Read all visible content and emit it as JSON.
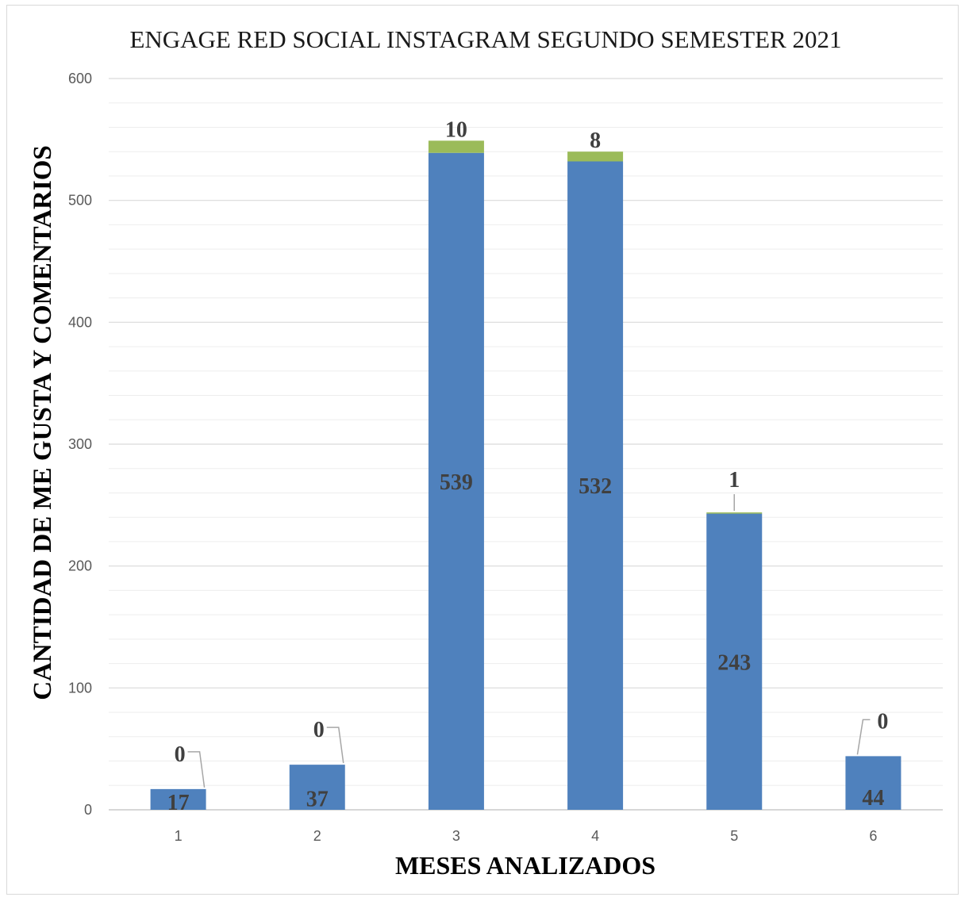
{
  "chart_data": {
    "type": "bar",
    "stacked": true,
    "title": "ENGAGE RED SOCIAL INSTAGRAM SEGUNDO SEMESTER 2021",
    "xlabel": "MESES ANALIZADOS",
    "ylabel": "CANTIDAD DE ME GUSTA Y COMENTARIOS",
    "categories": [
      "1",
      "2",
      "3",
      "4",
      "5",
      "6"
    ],
    "series": [
      {
        "values": [
          17,
          37,
          539,
          532,
          243,
          44
        ],
        "color": "#4f81bd"
      },
      {
        "values": [
          0,
          0,
          10,
          8,
          1,
          0
        ],
        "color": "#9bbb59"
      }
    ],
    "ylim": [
      0,
      600
    ],
    "yticks": [
      "0",
      "100",
      "200",
      "300",
      "400",
      "500",
      "600"
    ],
    "grid": true,
    "legend": "none"
  }
}
